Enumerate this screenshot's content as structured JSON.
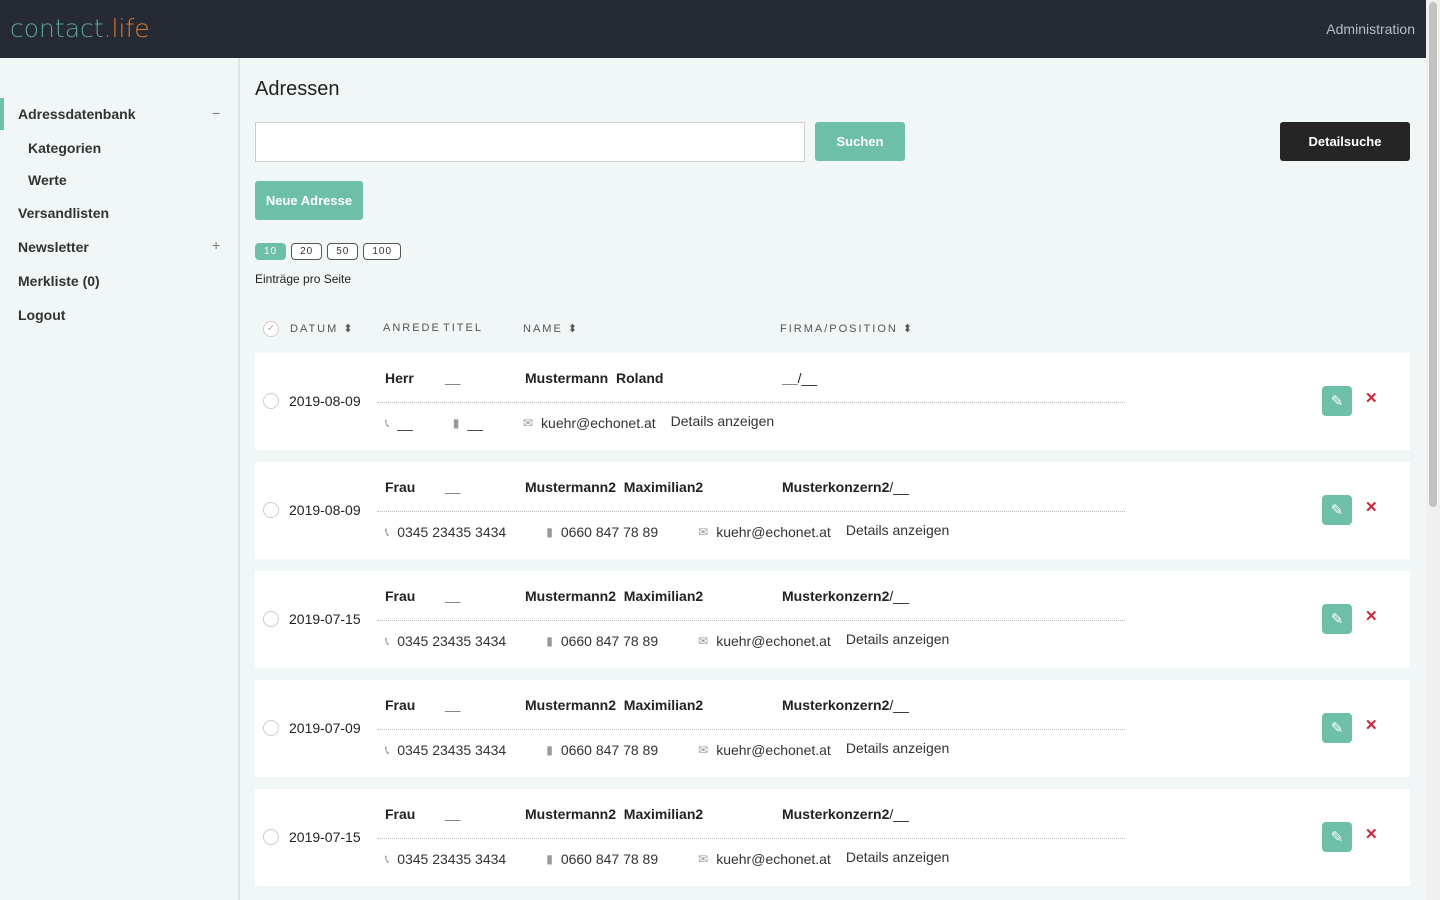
{
  "header": {
    "logo_main": "contact",
    "logo_accent": ".life",
    "admin": "Administration"
  },
  "sidebar": {
    "items": [
      {
        "label": "Adressdatenbank",
        "toggle": "−"
      },
      {
        "label": "Kategorien"
      },
      {
        "label": "Werte"
      },
      {
        "label": "Versandlisten"
      },
      {
        "label": "Newsletter",
        "toggle": "+"
      },
      {
        "label": "Merkliste (0)"
      },
      {
        "label": "Logout"
      }
    ]
  },
  "main": {
    "title": "Adressen",
    "search_value": "",
    "search_btn": "Suchen",
    "detail_btn": "Detailsuche",
    "new_btn": "Neue Adresse",
    "page_sizes": [
      "10",
      "20",
      "50",
      "100"
    ],
    "page_size_selected": "10",
    "per_page_label": "Einträge pro Seite",
    "columns": {
      "datum": "DATUM",
      "anrede": "ANREDE",
      "titel": "TITEL",
      "name": "NAME",
      "firma": "FIRMA/POSITION"
    },
    "details_label": "Details anzeigen",
    "rows": [
      {
        "date": "2019-08-09",
        "anrede": "Herr",
        "titel": "__",
        "name": "Mustermann  Roland",
        "firma": "__",
        "position": "__",
        "phone": "__",
        "mobile": "__",
        "email": "kuehr@echonet.at"
      },
      {
        "date": "2019-08-09",
        "anrede": "Frau",
        "titel": "__",
        "name": "Mustermann2  Maximilian2",
        "firma": "Musterkonzern2",
        "position": "__",
        "phone": "0345 23435 3434",
        "mobile": "0660 847 78 89",
        "email": "kuehr@echonet.at"
      },
      {
        "date": "2019-07-15",
        "anrede": "Frau",
        "titel": "__",
        "name": "Mustermann2  Maximilian2",
        "firma": "Musterkonzern2",
        "position": "__",
        "phone": "0345 23435 3434",
        "mobile": "0660 847 78 89",
        "email": "kuehr@echonet.at"
      },
      {
        "date": "2019-07-09",
        "anrede": "Frau",
        "titel": "__",
        "name": "Mustermann2  Maximilian2",
        "firma": "Musterkonzern2",
        "position": "__",
        "phone": "0345 23435 3434",
        "mobile": "0660 847 78 89",
        "email": "kuehr@echonet.at"
      },
      {
        "date": "2019-07-15",
        "anrede": "Frau",
        "titel": "__",
        "name": "Mustermann2  Maximilian2",
        "firma": "Musterkonzern2",
        "position": "__",
        "phone": "0345 23435 3434",
        "mobile": "0660 847 78 89",
        "email": "kuehr@echonet.at"
      }
    ]
  },
  "colors": {
    "accent": "#6dbfa8",
    "header": "#252a35",
    "logo_accent": "#d9792d",
    "delete": "#d0263a"
  }
}
